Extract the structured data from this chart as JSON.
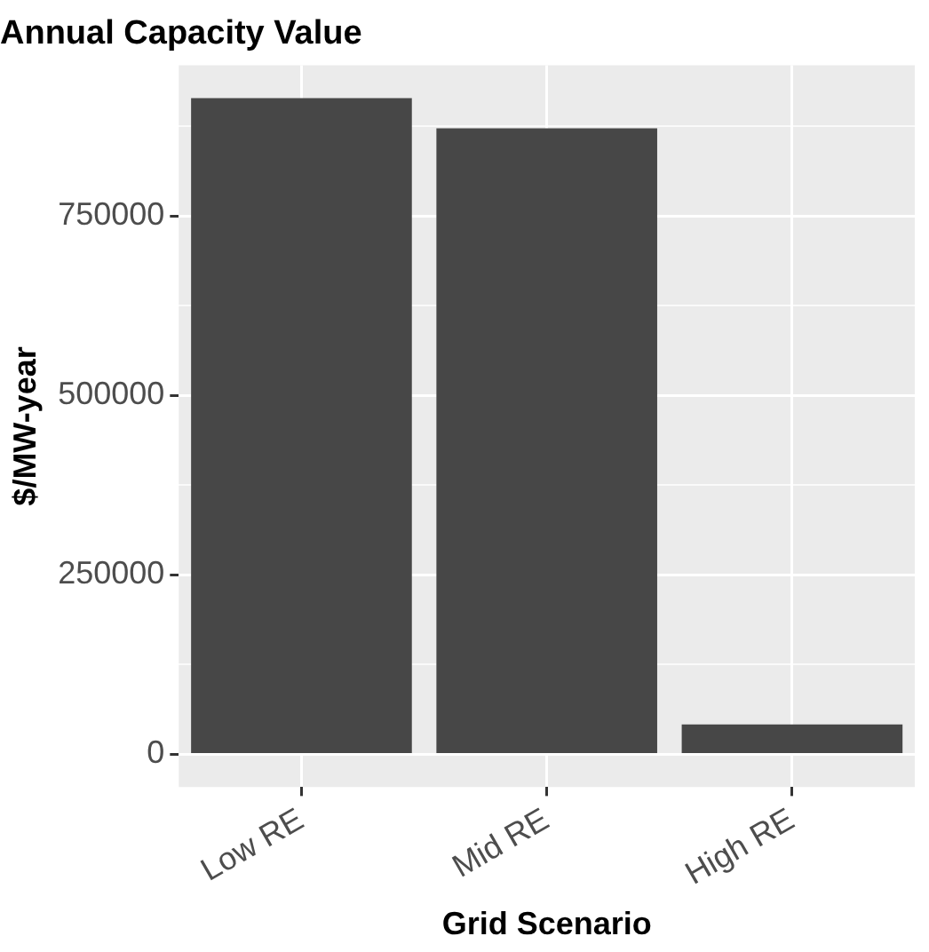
{
  "chart_data": {
    "type": "bar",
    "title": "Annual Capacity Value",
    "xlabel": "Grid Scenario",
    "ylabel": "$/MW-year",
    "categories": [
      "Low RE",
      "Mid RE",
      "High RE"
    ],
    "values": [
      914000,
      872000,
      41500
    ],
    "color": "#474747",
    "ylim": [
      -45700,
      959700
    ],
    "yticks": [
      0,
      {
        "value": 125000,
        "label": null
      },
      250000,
      {
        "value": 375000,
        "label": null
      },
      500000,
      {
        "value": 625000,
        "label": null
      },
      750000,
      {
        "value": 875000,
        "label": null
      }
    ],
    "grid": true
  }
}
